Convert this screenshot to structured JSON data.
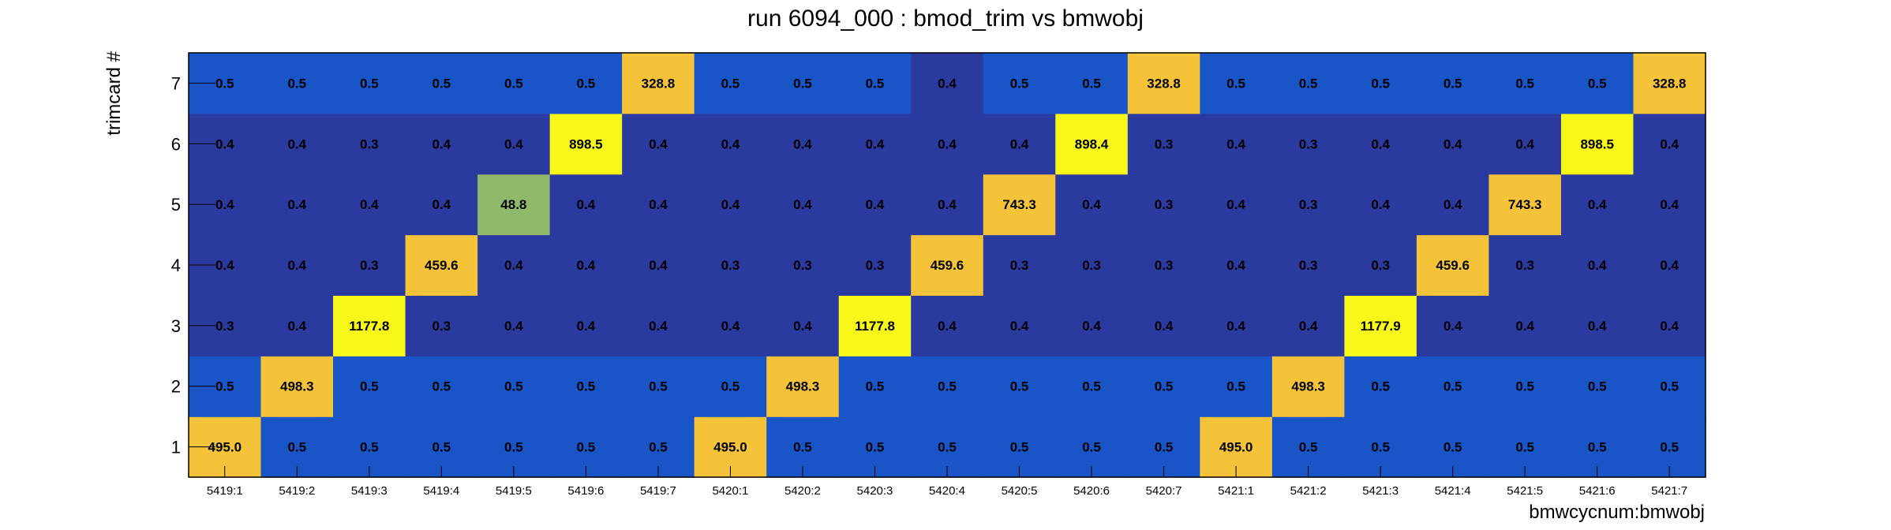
{
  "chart_data": {
    "type": "heatmap",
    "title": "run 6094_000 : bmod_trim vs bmwobj",
    "xlabel": "bmwcycnum:bmwobj",
    "ylabel": "trimcard #",
    "x_categories": [
      "5419:1",
      "5419:2",
      "5419:3",
      "5419:4",
      "5419:5",
      "5419:6",
      "5419:7",
      "5420:1",
      "5420:2",
      "5420:3",
      "5420:4",
      "5420:5",
      "5420:6",
      "5420:7",
      "5421:1",
      "5421:2",
      "5421:3",
      "5421:4",
      "5421:5",
      "5421:6",
      "5421:7"
    ],
    "y_categories": [
      "1",
      "2",
      "3",
      "4",
      "5",
      "6",
      "7"
    ],
    "values": [
      [
        "495.0",
        "0.5",
        "0.5",
        "0.5",
        "0.5",
        "0.5",
        "0.5",
        "495.0",
        "0.5",
        "0.5",
        "0.5",
        "0.5",
        "0.5",
        "0.5",
        "495.0",
        "0.5",
        "0.5",
        "0.5",
        "0.5",
        "0.5",
        "0.5"
      ],
      [
        "0.5",
        "498.3",
        "0.5",
        "0.5",
        "0.5",
        "0.5",
        "0.5",
        "0.5",
        "498.3",
        "0.5",
        "0.5",
        "0.5",
        "0.5",
        "0.5",
        "0.5",
        "498.3",
        "0.5",
        "0.5",
        "0.5",
        "0.5",
        "0.5"
      ],
      [
        "0.3",
        "0.4",
        "1177.8",
        "0.3",
        "0.4",
        "0.4",
        "0.4",
        "0.4",
        "0.4",
        "1177.8",
        "0.4",
        "0.4",
        "0.4",
        "0.4",
        "0.4",
        "0.4",
        "1177.9",
        "0.4",
        "0.4",
        "0.4",
        "0.4"
      ],
      [
        "0.4",
        "0.4",
        "0.3",
        "459.6",
        "0.4",
        "0.4",
        "0.4",
        "0.3",
        "0.3",
        "0.3",
        "459.6",
        "0.3",
        "0.3",
        "0.3",
        "0.4",
        "0.3",
        "0.3",
        "459.6",
        "0.3",
        "0.4",
        "0.4"
      ],
      [
        "0.4",
        "0.4",
        "0.4",
        "0.4",
        "48.8",
        "0.4",
        "0.4",
        "0.4",
        "0.4",
        "0.4",
        "0.4",
        "743.3",
        "0.4",
        "0.3",
        "0.4",
        "0.3",
        "0.4",
        "0.4",
        "743.3",
        "0.4",
        "0.4"
      ],
      [
        "0.4",
        "0.4",
        "0.3",
        "0.4",
        "0.4",
        "898.5",
        "0.4",
        "0.4",
        "0.4",
        "0.4",
        "0.4",
        "0.4",
        "898.4",
        "0.3",
        "0.4",
        "0.3",
        "0.4",
        "0.4",
        "0.4",
        "898.5",
        "0.4"
      ],
      [
        "0.5",
        "0.5",
        "0.5",
        "0.5",
        "0.5",
        "0.5",
        "328.8",
        "0.5",
        "0.5",
        "0.5",
        "0.4",
        "0.5",
        "0.5",
        "328.8",
        "0.5",
        "0.5",
        "0.5",
        "0.5",
        "0.5",
        "0.5",
        "328.8"
      ]
    ],
    "colors": {
      "low_dark": "#2a3a9e",
      "low_mid": "#1a55c8",
      "mid_green": "#8fb86a",
      "high_orange": "#f5c33a",
      "max_yellow": "#f7f71a",
      "axis": "#000000"
    }
  }
}
